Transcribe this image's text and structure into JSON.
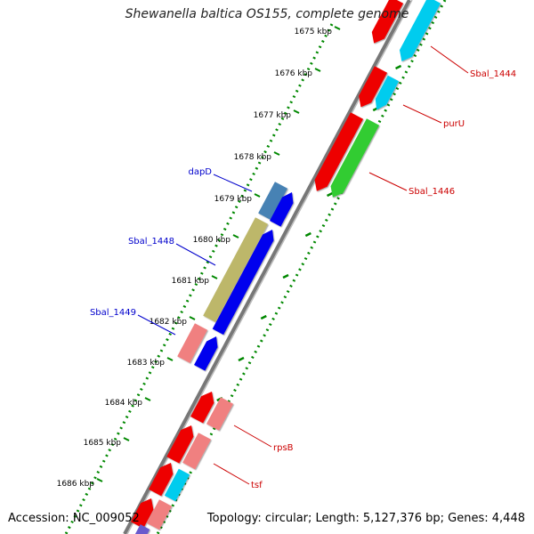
{
  "title": "Shewanella baltica OS155, complete genome",
  "footer": {
    "accession": "Accession: NC_009052",
    "summary": "Topology: circular; Length: 5,127,376 bp; Genes: 4,448"
  },
  "ticks": [
    {
      "label": "1675 kbp"
    },
    {
      "label": "1676 kbp"
    },
    {
      "label": "1677 kbp"
    },
    {
      "label": "1678 kbp"
    },
    {
      "label": "1679 kbp"
    },
    {
      "label": "1680 kbp"
    },
    {
      "label": "1681 kbp"
    },
    {
      "label": "1682 kbp"
    },
    {
      "label": "1683 kbp"
    },
    {
      "label": "1684 kbp"
    },
    {
      "label": "1685 kbp"
    },
    {
      "label": "1686 kbp"
    }
  ],
  "gene_labels": [
    {
      "name": "Sbal_1444",
      "color": "#cc0000"
    },
    {
      "name": "purU",
      "color": "#cc0000"
    },
    {
      "name": "Sbal_1446",
      "color": "#cc0000"
    },
    {
      "name": "dapD",
      "color": "#0000cc"
    },
    {
      "name": "Sbal_1448",
      "color": "#0000cc"
    },
    {
      "name": "Sbal_1449",
      "color": "#0000cc"
    },
    {
      "name": "rpsB",
      "color": "#cc0000"
    },
    {
      "name": "tsf",
      "color": "#cc0000"
    }
  ],
  "colors": {
    "red": "#ee0000",
    "cyan": "#00ccee",
    "green": "#33cc33",
    "steel": "#4682b4",
    "khaki": "#bdb76b",
    "blue": "#0000ee",
    "pink": "#f08080",
    "purple": "#6a5acd",
    "backbone": "#808080",
    "dots": "#008800"
  }
}
